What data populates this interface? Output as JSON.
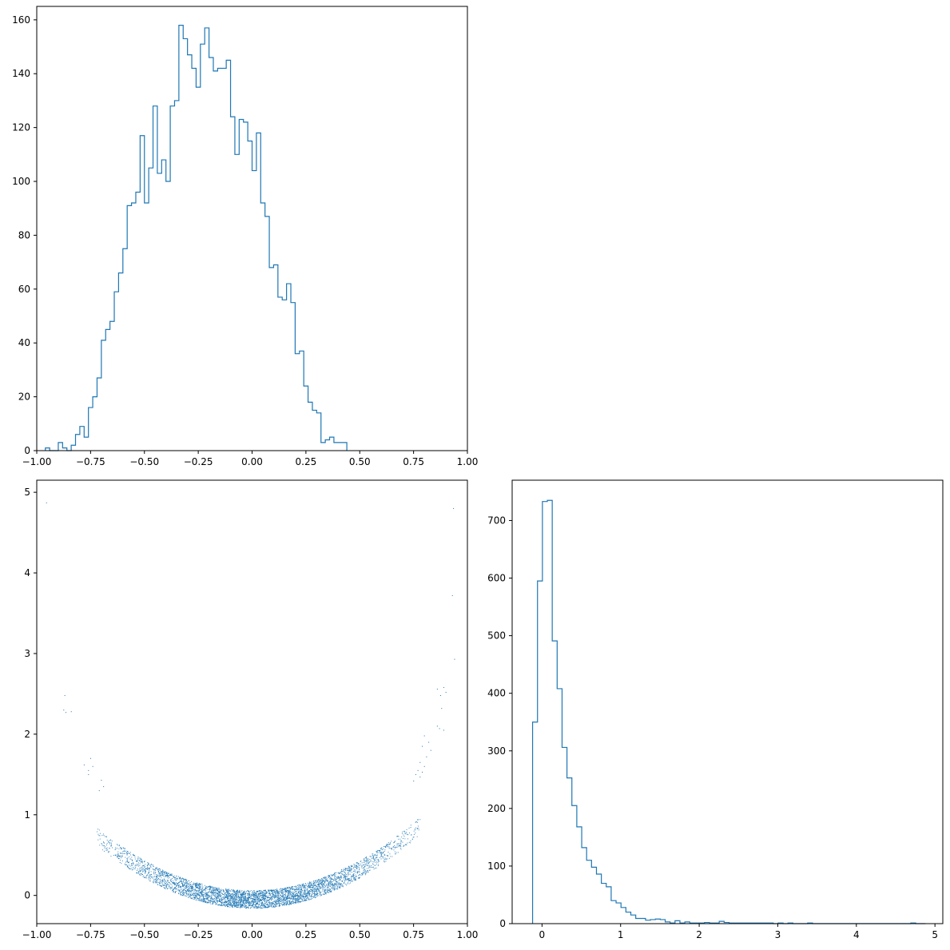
{
  "colors": {
    "series": "#1f77b4",
    "axis": "#000000",
    "background": "#ffffff"
  },
  "chart_data": [
    {
      "id": "hist_x",
      "type": "histogram",
      "title": "",
      "xlabel": "",
      "ylabel": "",
      "xlim": [
        -1.0,
        1.0
      ],
      "ylim": [
        0,
        165
      ],
      "xticks": [
        -1.0,
        -0.75,
        -0.5,
        -0.25,
        0.0,
        0.25,
        0.5,
        0.75,
        1.0
      ],
      "xtick_labels": [
        "−1.00",
        "−0.75",
        "−0.50",
        "−0.25",
        "0.00",
        "0.25",
        "0.50",
        "0.75",
        "1.00"
      ],
      "yticks": [
        0,
        20,
        40,
        60,
        80,
        100,
        120,
        140,
        160
      ],
      "ytick_labels": [
        "0",
        "20",
        "40",
        "60",
        "80",
        "100",
        "120",
        "140",
        "160"
      ],
      "bin_start": -0.96,
      "bin_width": 0.02,
      "counts": [
        1,
        0,
        0,
        3,
        1,
        0,
        2,
        6,
        9,
        5,
        16,
        20,
        27,
        41,
        45,
        48,
        59,
        66,
        75,
        91,
        92,
        96,
        117,
        92,
        105,
        128,
        103,
        108,
        100,
        128,
        130,
        158,
        153,
        147,
        142,
        135,
        151,
        157,
        146,
        141,
        142,
        142,
        145,
        124,
        110,
        123,
        122,
        115,
        104,
        118,
        92,
        87,
        68,
        69,
        57,
        56,
        62,
        55,
        36,
        37,
        24,
        18,
        15,
        14,
        3,
        4,
        5,
        3,
        3,
        3
      ]
    },
    {
      "id": "scatter_xy",
      "type": "scatter",
      "title": "",
      "xlabel": "",
      "ylabel": "",
      "xlim": [
        -1.0,
        1.0
      ],
      "ylim": [
        -0.35,
        5.15
      ],
      "xticks": [
        -1.0,
        -0.75,
        -0.5,
        -0.25,
        0.0,
        0.25,
        0.5,
        0.75,
        1.0
      ],
      "xtick_labels": [
        "−1.00",
        "−0.75",
        "−0.50",
        "−0.25",
        "0.00",
        "0.25",
        "0.50",
        "0.75",
        "1.00"
      ],
      "yticks": [
        0,
        1,
        2,
        3,
        4,
        5
      ],
      "ytick_labels": [
        "0",
        "1",
        "2",
        "3",
        "4",
        "5"
      ],
      "points": [
        [
          -0.955,
          4.87
        ],
        [
          0.935,
          4.8
        ],
        [
          0.93,
          3.72
        ],
        [
          0.94,
          2.93
        ],
        [
          -0.87,
          2.48
        ],
        [
          -0.875,
          2.3
        ],
        [
          -0.865,
          2.27
        ],
        [
          -0.84,
          2.28
        ],
        [
          0.89,
          2.58
        ],
        [
          0.9,
          2.52
        ],
        [
          0.86,
          2.56
        ],
        [
          0.875,
          2.48
        ],
        [
          0.88,
          2.32
        ],
        [
          0.87,
          2.07
        ],
        [
          0.86,
          2.1
        ],
        [
          0.89,
          2.05
        ],
        [
          -0.78,
          1.62
        ],
        [
          -0.76,
          1.55
        ],
        [
          -0.75,
          1.7
        ],
        [
          -0.74,
          1.6
        ],
        [
          -0.76,
          1.5
        ],
        [
          -0.7,
          1.43
        ],
        [
          -0.69,
          1.35
        ],
        [
          -0.71,
          1.3
        ],
        [
          0.8,
          1.98
        ],
        [
          0.82,
          1.9
        ],
        [
          0.79,
          1.85
        ],
        [
          0.83,
          1.8
        ],
        [
          0.81,
          1.72
        ],
        [
          0.78,
          1.65
        ],
        [
          0.8,
          1.6
        ],
        [
          0.77,
          1.55
        ],
        [
          0.76,
          1.5
        ],
        [
          0.75,
          1.42
        ],
        [
          0.78,
          1.47
        ],
        [
          0.79,
          1.53
        ]
      ],
      "band": {
        "n": 4800,
        "curve": "y = 1.5*x^2 - 0.05",
        "half_width": 0.11,
        "x_sigma": 0.36,
        "x_range": [
          -0.72,
          0.78
        ]
      }
    },
    {
      "id": "hist_y",
      "type": "histogram",
      "title": "",
      "xlabel": "",
      "ylabel": "",
      "xlim": [
        -0.38,
        5.1
      ],
      "ylim": [
        0,
        770
      ],
      "xticks": [
        0,
        1,
        2,
        3,
        4,
        5
      ],
      "xtick_labels": [
        "0",
        "1",
        "2",
        "3",
        "4",
        "5"
      ],
      "yticks": [
        0,
        100,
        200,
        300,
        400,
        500,
        600,
        700
      ],
      "ytick_labels": [
        "0",
        "100",
        "200",
        "300",
        "400",
        "500",
        "600",
        "700"
      ],
      "bin_start": -0.12,
      "bin_width": 0.0625,
      "counts": [
        350,
        595,
        733,
        735,
        491,
        408,
        306,
        253,
        205,
        168,
        132,
        110,
        98,
        86,
        70,
        64,
        40,
        36,
        28,
        20,
        15,
        9,
        9,
        6,
        7,
        8,
        7,
        3,
        1,
        5,
        1,
        3,
        1,
        1,
        1,
        2,
        1,
        1,
        4,
        2,
        1,
        1,
        1,
        1,
        1,
        1,
        1,
        1,
        1,
        0,
        1,
        0,
        1,
        0,
        0,
        0,
        1,
        0,
        0,
        0,
        0,
        0,
        0,
        0,
        0,
        0,
        0,
        0,
        0,
        0,
        0,
        0,
        0,
        0,
        0,
        0,
        0,
        1,
        0,
        0
      ]
    }
  ]
}
